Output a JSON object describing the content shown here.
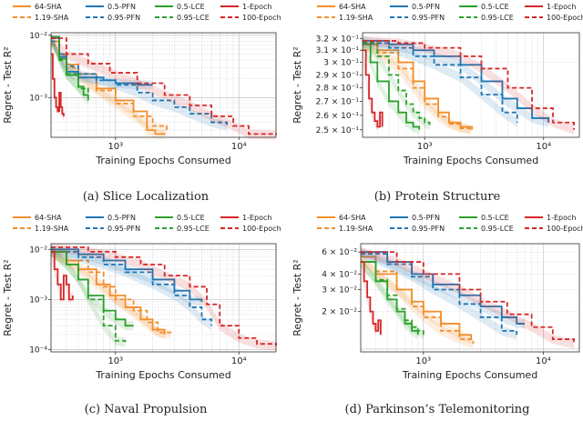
{
  "legend_labels": [
    {
      "name": "64-SHA",
      "color": "#f28e2b",
      "dash": false
    },
    {
      "name": "1.19-SHA",
      "color": "#f28e2b",
      "dash": true
    },
    {
      "name": "0.5-PFN",
      "color": "#1f77b4",
      "dash": false
    },
    {
      "name": "0.95-PFN",
      "color": "#1f77b4",
      "dash": true
    },
    {
      "name": "0.5-LCE",
      "color": "#2ca02c",
      "dash": false
    },
    {
      "name": "0.95-LCE",
      "color": "#2ca02c",
      "dash": true
    },
    {
      "name": "1-Epoch",
      "color": "#d62728",
      "dash": false
    },
    {
      "name": "100-Epoch",
      "color": "#d62728",
      "dash": true
    }
  ],
  "chart_data": [
    {
      "type": "line",
      "caption": "(a) Slice Localization",
      "xlabel": "Training Epochs Consumed",
      "ylabel": "Regret - Test R²",
      "xscale": "log",
      "yscale": "log",
      "xlim": [
        300,
        20000
      ],
      "ylim": [
        0.00023,
        0.011
      ],
      "xticks": [
        {
          "v": 1000,
          "label": "10³"
        },
        {
          "v": 10000,
          "label": "10⁴"
        }
      ],
      "yticks": [
        {
          "v": 0.01,
          "label": "10⁻²"
        },
        {
          "v": 0.001,
          "label": "10⁻³"
        }
      ],
      "series": [
        {
          "name": "64-SHA",
          "x": [
            300,
            350,
            400,
            500,
            700,
            1000,
            1400,
            1800,
            2100,
            2500
          ],
          "y": [
            0.008,
            0.005,
            0.0034,
            0.0024,
            0.0014,
            0.0009,
            0.0006,
            0.0003,
            0.00026,
            0.00025
          ]
        },
        {
          "name": "1.19-SHA",
          "x": [
            300,
            350,
            400,
            500,
            700,
            1000,
            1400,
            2000,
            2600
          ],
          "y": [
            0.007,
            0.0048,
            0.003,
            0.0021,
            0.0013,
            0.0008,
            0.0005,
            0.00035,
            0.0003
          ]
        },
        {
          "name": "0.5-PFN",
          "x": [
            300,
            350,
            400,
            500,
            800,
            1000,
            1500,
            2000
          ],
          "y": [
            0.009,
            0.0045,
            0.0026,
            0.0021,
            0.0019,
            0.0017,
            0.0016,
            0.0016
          ]
        },
        {
          "name": "0.95-PFN",
          "x": [
            300,
            350,
            400,
            500,
            700,
            1000,
            1500,
            2000,
            3000,
            4000,
            6000,
            8000
          ],
          "y": [
            0.008,
            0.005,
            0.0032,
            0.0024,
            0.0019,
            0.0016,
            0.0012,
            0.0009,
            0.0007,
            0.00055,
            0.0004,
            0.00035
          ]
        },
        {
          "name": "0.5-LCE",
          "x": [
            300,
            350,
            400,
            500,
            550,
            600
          ],
          "y": [
            0.0095,
            0.0042,
            0.0023,
            0.0015,
            0.0011,
            0.0009
          ]
        },
        {
          "name": "0.95-LCE",
          "x": [
            300,
            350,
            400,
            500,
            600
          ],
          "y": [
            0.009,
            0.004,
            0.0024,
            0.0014,
            0.0012
          ]
        },
        {
          "name": "1-Epoch",
          "x": [
            300,
            310,
            320,
            330,
            340,
            350,
            360,
            370,
            380
          ],
          "y": [
            0.005,
            0.002,
            0.001,
            0.0007,
            0.0006,
            0.0012,
            0.0007,
            0.00055,
            0.0005
          ]
        },
        {
          "name": "100-Epoch",
          "x": [
            300,
            400,
            600,
            900,
            1500,
            2500,
            4000,
            6000,
            9000,
            12000,
            20000
          ],
          "y": [
            0.009,
            0.005,
            0.0035,
            0.0025,
            0.0017,
            0.0011,
            0.00075,
            0.0005,
            0.00035,
            0.00026,
            0.00025
          ]
        }
      ]
    },
    {
      "type": "line",
      "caption": "(b) Protein Structure",
      "xlabel": "Training Epochs Consumed",
      "ylabel": "Regret - Test R²",
      "xscale": "log",
      "yscale": "log",
      "xlim": [
        300,
        20000
      ],
      "ylim": [
        0.245,
        0.325
      ],
      "xticks": [
        {
          "v": 1000,
          "label": "10³"
        },
        {
          "v": 10000,
          "label": "10⁴"
        }
      ],
      "yticks": [
        {
          "v": 0.32,
          "label": "3.2 × 10⁻¹"
        },
        {
          "v": 0.31,
          "label": "3.1 × 10⁻¹"
        },
        {
          "v": 0.3,
          "label": "3 × 10⁻¹"
        },
        {
          "v": 0.29,
          "label": "2.9 × 10⁻¹"
        },
        {
          "v": 0.28,
          "label": "2.8 × 10⁻¹"
        },
        {
          "v": 0.27,
          "label": "2.7 × 10⁻¹"
        },
        {
          "v": 0.26,
          "label": "2.6 × 10⁻¹"
        },
        {
          "v": 0.25,
          "label": "2.5 × 10⁻¹"
        }
      ],
      "series": [
        {
          "name": "64-SHA",
          "x": [
            300,
            400,
            600,
            800,
            1000,
            1300,
            1600,
            2000,
            2500
          ],
          "y": [
            0.315,
            0.31,
            0.3,
            0.285,
            0.272,
            0.262,
            0.255,
            0.252,
            0.25
          ]
        },
        {
          "name": "1.19-SHA",
          "x": [
            300,
            400,
            600,
            800,
            1000,
            1300,
            1600,
            2000,
            2400
          ],
          "y": [
            0.316,
            0.308,
            0.295,
            0.28,
            0.268,
            0.259,
            0.254,
            0.251,
            0.25
          ]
        },
        {
          "name": "0.5-PFN",
          "x": [
            300,
            500,
            800,
            1200,
            2000,
            3000,
            4500,
            6000,
            8000,
            11000
          ],
          "y": [
            0.318,
            0.315,
            0.31,
            0.305,
            0.298,
            0.285,
            0.272,
            0.265,
            0.258,
            0.255
          ]
        },
        {
          "name": "0.95-PFN",
          "x": [
            300,
            500,
            800,
            1200,
            2000,
            3000,
            4500,
            6000
          ],
          "y": [
            0.316,
            0.312,
            0.305,
            0.298,
            0.288,
            0.275,
            0.262,
            0.255
          ]
        },
        {
          "name": "0.5-LCE",
          "x": [
            300,
            350,
            400,
            500,
            600,
            700,
            800,
            900
          ],
          "y": [
            0.315,
            0.3,
            0.285,
            0.27,
            0.262,
            0.255,
            0.252,
            0.25
          ]
        },
        {
          "name": "0.95-LCE",
          "x": [
            300,
            400,
            500,
            600,
            700,
            800,
            900,
            1000,
            1100
          ],
          "y": [
            0.317,
            0.305,
            0.29,
            0.278,
            0.268,
            0.262,
            0.258,
            0.255,
            0.253
          ]
        },
        {
          "name": "1-Epoch",
          "x": [
            300,
            320,
            340,
            360,
            380,
            400,
            420,
            440
          ],
          "y": [
            0.31,
            0.29,
            0.272,
            0.262,
            0.256,
            0.252,
            0.262,
            0.252
          ]
        },
        {
          "name": "100-Epoch",
          "x": [
            300,
            600,
            1000,
            2000,
            3000,
            5000,
            8000,
            12000,
            18000
          ],
          "y": [
            0.318,
            0.316,
            0.312,
            0.305,
            0.295,
            0.28,
            0.265,
            0.255,
            0.25
          ]
        }
      ]
    },
    {
      "type": "line",
      "caption": "(c) Naval Propulsion",
      "xlabel": "Training Epochs Consumed",
      "ylabel": "Regret - Test R²",
      "xscale": "log",
      "yscale": "log",
      "xlim": [
        300,
        20000
      ],
      "ylim": [
        9e-05,
        0.013
      ],
      "xticks": [
        {
          "v": 1000,
          "label": "10³"
        },
        {
          "v": 10000,
          "label": "10⁴"
        }
      ],
      "yticks": [
        {
          "v": 0.01,
          "label": "10⁻²"
        },
        {
          "v": 0.001,
          "label": "10⁻³"
        },
        {
          "v": 0.0001,
          "label": "10⁻⁴"
        }
      ],
      "series": [
        {
          "name": "64-SHA",
          "x": [
            300,
            400,
            500,
            700,
            900,
            1200,
            1600,
            2000,
            2500
          ],
          "y": [
            0.009,
            0.006,
            0.004,
            0.002,
            0.0012,
            0.0007,
            0.0004,
            0.00025,
            0.0002
          ]
        },
        {
          "name": "1.19-SHA",
          "x": [
            300,
            400,
            600,
            800,
            1000,
            1400,
            1800,
            2200,
            2800
          ],
          "y": [
            0.009,
            0.006,
            0.0035,
            0.0018,
            0.001,
            0.0006,
            0.00035,
            0.00022,
            0.0002
          ]
        },
        {
          "name": "0.5-PFN",
          "x": [
            300,
            500,
            800,
            1200,
            2000,
            3000,
            4000,
            5000
          ],
          "y": [
            0.01,
            0.008,
            0.006,
            0.004,
            0.0025,
            0.0015,
            0.001,
            0.0009
          ]
        },
        {
          "name": "0.95-PFN",
          "x": [
            300,
            500,
            800,
            1200,
            2000,
            3000,
            4000,
            5000,
            6000
          ],
          "y": [
            0.009,
            0.007,
            0.005,
            0.0035,
            0.002,
            0.0012,
            0.0007,
            0.0004,
            0.0003
          ]
        },
        {
          "name": "0.5-LCE",
          "x": [
            300,
            400,
            500,
            600,
            800,
            1000,
            1200,
            1400
          ],
          "y": [
            0.009,
            0.005,
            0.0025,
            0.0012,
            0.0006,
            0.0004,
            0.0003,
            0.0003
          ]
        },
        {
          "name": "0.95-LCE",
          "x": [
            300,
            400,
            500,
            600,
            800,
            1000,
            1200
          ],
          "y": [
            0.009,
            0.005,
            0.0025,
            0.001,
            0.0003,
            0.00015,
            0.00014
          ]
        },
        {
          "name": "1-Epoch",
          "x": [
            300,
            320,
            340,
            360,
            380,
            400,
            420,
            450
          ],
          "y": [
            0.009,
            0.004,
            0.002,
            0.001,
            0.003,
            0.002,
            0.001,
            0.0012
          ]
        },
        {
          "name": "100-Epoch",
          "x": [
            300,
            600,
            1000,
            1600,
            2500,
            4000,
            5500,
            7000,
            10000,
            14000,
            20000
          ],
          "y": [
            0.011,
            0.009,
            0.007,
            0.005,
            0.003,
            0.0018,
            0.0008,
            0.0003,
            0.00017,
            0.00013,
            0.00012
          ]
        }
      ]
    },
    {
      "type": "line",
      "caption": "(d) Parkinson’s Telemonitoring",
      "xlabel": "Training Epochs Consumed",
      "ylabel": "Regret - Test R²",
      "xscale": "log",
      "yscale": "log",
      "xlim": [
        300,
        20000
      ],
      "ylim": [
        0.0095,
        0.07
      ],
      "xticks": [
        {
          "v": 1000,
          "label": "10³"
        },
        {
          "v": 10000,
          "label": "10⁴"
        }
      ],
      "yticks": [
        {
          "v": 0.06,
          "label": "6 × 10⁻²"
        },
        {
          "v": 0.04,
          "label": "4 × 10⁻²"
        },
        {
          "v": 0.03,
          "label": "3 × 10⁻²"
        },
        {
          "v": 0.02,
          "label": "2 × 10⁻²"
        }
      ],
      "series": [
        {
          "name": "64-SHA",
          "x": [
            300,
            400,
            600,
            800,
            1000,
            1400,
            2000,
            2500
          ],
          "y": [
            0.055,
            0.04,
            0.03,
            0.024,
            0.02,
            0.016,
            0.013,
            0.012
          ]
        },
        {
          "name": "1.19-SHA",
          "x": [
            300,
            400,
            600,
            800,
            1000,
            1400,
            2000,
            2600
          ],
          "y": [
            0.055,
            0.042,
            0.03,
            0.022,
            0.018,
            0.014,
            0.012,
            0.011
          ]
        },
        {
          "name": "0.5-PFN",
          "x": [
            300,
            500,
            800,
            1200,
            2000,
            3000,
            4500,
            6000,
            7000
          ],
          "y": [
            0.06,
            0.05,
            0.04,
            0.033,
            0.027,
            0.022,
            0.018,
            0.016,
            0.016
          ]
        },
        {
          "name": "0.95-PFN",
          "x": [
            300,
            500,
            800,
            1200,
            2000,
            3000,
            4500,
            6000
          ],
          "y": [
            0.058,
            0.048,
            0.038,
            0.03,
            0.023,
            0.018,
            0.014,
            0.013
          ]
        },
        {
          "name": "0.5-LCE",
          "x": [
            300,
            400,
            500,
            600,
            700,
            800,
            900
          ],
          "y": [
            0.05,
            0.035,
            0.025,
            0.02,
            0.016,
            0.014,
            0.013
          ]
        },
        {
          "name": "0.95-LCE",
          "x": [
            300,
            400,
            500,
            600,
            700,
            800,
            900,
            1000
          ],
          "y": [
            0.05,
            0.036,
            0.027,
            0.021,
            0.017,
            0.015,
            0.014,
            0.013
          ]
        },
        {
          "name": "1-Epoch",
          "x": [
            300,
            320,
            340,
            360,
            380,
            400,
            420,
            440
          ],
          "y": [
            0.05,
            0.035,
            0.026,
            0.02,
            0.016,
            0.014,
            0.017,
            0.013
          ]
        },
        {
          "name": "100-Epoch",
          "x": [
            300,
            600,
            1000,
            2000,
            3000,
            5000,
            8000,
            12000,
            18000
          ],
          "y": [
            0.06,
            0.05,
            0.04,
            0.03,
            0.024,
            0.019,
            0.015,
            0.012,
            0.011
          ]
        }
      ]
    }
  ]
}
